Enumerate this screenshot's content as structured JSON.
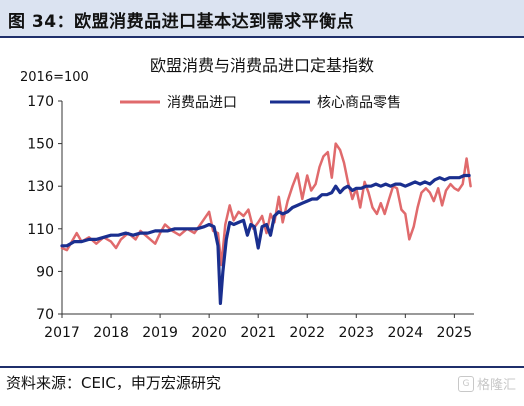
{
  "header": {
    "title": "图 34：欧盟消费品进口基本达到需求平衡点"
  },
  "footer": {
    "source": "资料来源：CEIC，申万宏源研究"
  },
  "watermark": {
    "icon": "logo-icon",
    "text": "格隆汇"
  },
  "colors": {
    "import_line": "#e06a6c",
    "retail_line": "#1a2f8f",
    "axis": "#333333",
    "header_bg": "#dbe3f1",
    "rule": "#1f2f6b"
  },
  "chart_data": {
    "type": "line",
    "title": "欧盟消费与消费品进口定基指数",
    "ylabel": "2016=100",
    "ylim": [
      70,
      170
    ],
    "yticks": [
      70,
      90,
      110,
      130,
      150,
      170
    ],
    "xlim": [
      2017.0,
      2025.4
    ],
    "xticks": [
      "2017",
      "2018",
      "2019",
      "2020",
      "2021",
      "2022",
      "2023",
      "2024",
      "2025"
    ],
    "grid": false,
    "legend_position": "top",
    "series": [
      {
        "name": "消费品进口",
        "color": "#e06a6c",
        "points": [
          [
            2017.0,
            101
          ],
          [
            2017.1,
            100
          ],
          [
            2017.2,
            104
          ],
          [
            2017.3,
            108
          ],
          [
            2017.4,
            104
          ],
          [
            2017.55,
            106
          ],
          [
            2017.7,
            103
          ],
          [
            2017.85,
            106
          ],
          [
            2018.0,
            104
          ],
          [
            2018.1,
            101
          ],
          [
            2018.2,
            105
          ],
          [
            2018.35,
            108
          ],
          [
            2018.5,
            105
          ],
          [
            2018.6,
            109
          ],
          [
            2018.75,
            106
          ],
          [
            2018.9,
            103
          ],
          [
            2019.0,
            108
          ],
          [
            2019.1,
            112
          ],
          [
            2019.25,
            109
          ],
          [
            2019.4,
            107
          ],
          [
            2019.55,
            110
          ],
          [
            2019.7,
            108
          ],
          [
            2019.85,
            113
          ],
          [
            2020.0,
            118
          ],
          [
            2020.08,
            109
          ],
          [
            2020.18,
            108
          ],
          [
            2020.25,
            93
          ],
          [
            2020.33,
            112
          ],
          [
            2020.42,
            121
          ],
          [
            2020.5,
            114
          ],
          [
            2020.6,
            118
          ],
          [
            2020.7,
            116
          ],
          [
            2020.8,
            119
          ],
          [
            2020.9,
            110
          ],
          [
            2021.0,
            113
          ],
          [
            2021.08,
            116
          ],
          [
            2021.17,
            108
          ],
          [
            2021.25,
            117
          ],
          [
            2021.33,
            113
          ],
          [
            2021.42,
            125
          ],
          [
            2021.5,
            113
          ],
          [
            2021.6,
            123
          ],
          [
            2021.7,
            130
          ],
          [
            2021.8,
            136
          ],
          [
            2021.9,
            124
          ],
          [
            2022.0,
            135
          ],
          [
            2022.08,
            128
          ],
          [
            2022.17,
            131
          ],
          [
            2022.25,
            139
          ],
          [
            2022.33,
            144
          ],
          [
            2022.42,
            146
          ],
          [
            2022.5,
            134
          ],
          [
            2022.58,
            150
          ],
          [
            2022.67,
            147
          ],
          [
            2022.75,
            141
          ],
          [
            2022.83,
            132
          ],
          [
            2022.92,
            124
          ],
          [
            2023.0,
            129
          ],
          [
            2023.08,
            120
          ],
          [
            2023.17,
            132
          ],
          [
            2023.25,
            127
          ],
          [
            2023.33,
            120
          ],
          [
            2023.42,
            117
          ],
          [
            2023.5,
            122
          ],
          [
            2023.58,
            117
          ],
          [
            2023.67,
            124
          ],
          [
            2023.75,
            130
          ],
          [
            2023.83,
            129
          ],
          [
            2023.92,
            119
          ],
          [
            2024.0,
            117
          ],
          [
            2024.08,
            105
          ],
          [
            2024.17,
            111
          ],
          [
            2024.25,
            120
          ],
          [
            2024.33,
            127
          ],
          [
            2024.42,
            129
          ],
          [
            2024.5,
            127
          ],
          [
            2024.58,
            123
          ],
          [
            2024.67,
            129
          ],
          [
            2024.75,
            121
          ],
          [
            2024.83,
            128
          ],
          [
            2024.92,
            131
          ],
          [
            2025.0,
            129
          ],
          [
            2025.08,
            128
          ],
          [
            2025.17,
            131
          ],
          [
            2025.25,
            143
          ],
          [
            2025.33,
            130
          ]
        ]
      },
      {
        "name": "核心商品零售",
        "color": "#1a2f8f",
        "points": [
          [
            2017.0,
            102
          ],
          [
            2017.1,
            102
          ],
          [
            2017.25,
            104
          ],
          [
            2017.4,
            104
          ],
          [
            2017.55,
            105
          ],
          [
            2017.7,
            105
          ],
          [
            2017.85,
            106
          ],
          [
            2018.0,
            107
          ],
          [
            2018.15,
            107
          ],
          [
            2018.3,
            108
          ],
          [
            2018.45,
            107
          ],
          [
            2018.6,
            108
          ],
          [
            2018.75,
            108
          ],
          [
            2018.9,
            109
          ],
          [
            2019.0,
            109
          ],
          [
            2019.15,
            109
          ],
          [
            2019.3,
            110
          ],
          [
            2019.45,
            110
          ],
          [
            2019.6,
            110
          ],
          [
            2019.75,
            110
          ],
          [
            2019.9,
            111
          ],
          [
            2020.0,
            112
          ],
          [
            2020.1,
            111
          ],
          [
            2020.18,
            102
          ],
          [
            2020.23,
            75
          ],
          [
            2020.28,
            90
          ],
          [
            2020.35,
            105
          ],
          [
            2020.42,
            113
          ],
          [
            2020.5,
            112
          ],
          [
            2020.6,
            113
          ],
          [
            2020.7,
            114
          ],
          [
            2020.78,
            107
          ],
          [
            2020.85,
            112
          ],
          [
            2020.92,
            111
          ],
          [
            2021.0,
            101
          ],
          [
            2021.08,
            111
          ],
          [
            2021.17,
            112
          ],
          [
            2021.25,
            107
          ],
          [
            2021.33,
            116
          ],
          [
            2021.42,
            118
          ],
          [
            2021.5,
            117
          ],
          [
            2021.6,
            118
          ],
          [
            2021.7,
            120
          ],
          [
            2021.8,
            121
          ],
          [
            2021.9,
            122
          ],
          [
            2022.0,
            123
          ],
          [
            2022.1,
            124
          ],
          [
            2022.2,
            124
          ],
          [
            2022.3,
            126
          ],
          [
            2022.4,
            126
          ],
          [
            2022.5,
            127
          ],
          [
            2022.58,
            130
          ],
          [
            2022.67,
            127
          ],
          [
            2022.75,
            129
          ],
          [
            2022.83,
            130
          ],
          [
            2022.92,
            128
          ],
          [
            2023.0,
            129
          ],
          [
            2023.1,
            129
          ],
          [
            2023.2,
            130
          ],
          [
            2023.3,
            130
          ],
          [
            2023.4,
            131
          ],
          [
            2023.5,
            130
          ],
          [
            2023.6,
            131
          ],
          [
            2023.7,
            130
          ],
          [
            2023.8,
            131
          ],
          [
            2023.9,
            131
          ],
          [
            2024.0,
            130
          ],
          [
            2024.1,
            131
          ],
          [
            2024.2,
            132
          ],
          [
            2024.3,
            131
          ],
          [
            2024.4,
            132
          ],
          [
            2024.5,
            131
          ],
          [
            2024.6,
            133
          ],
          [
            2024.7,
            134
          ],
          [
            2024.8,
            133
          ],
          [
            2024.9,
            134
          ],
          [
            2025.0,
            134
          ],
          [
            2025.1,
            134
          ],
          [
            2025.2,
            135
          ],
          [
            2025.3,
            135
          ]
        ]
      }
    ]
  }
}
